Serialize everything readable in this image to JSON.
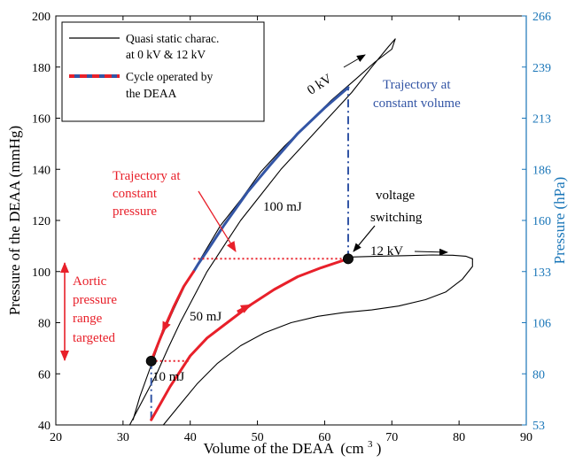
{
  "chart_data": {
    "type": "line",
    "xlabel": "Volume of the DEAA",
    "xlabel_unit": "(cm",
    "xlabel_unit_sup": "3",
    "xlabel_unit_close": ")",
    "ylabel": "Pressure of the DEAA (mmHg)",
    "ylabel_right": "Pressure (hPa)",
    "xlim": [
      20,
      90
    ],
    "ylim": [
      40,
      200
    ],
    "ylim_right": [
      53,
      266
    ],
    "x_ticks": [
      "20",
      "30",
      "40",
      "50",
      "60",
      "70",
      "80",
      "90"
    ],
    "y_ticks": [
      "40",
      "60",
      "80",
      "100",
      "120",
      "140",
      "160",
      "180",
      "200"
    ],
    "y_ticks_right": [
      "53",
      "80",
      "106",
      "133",
      "160",
      "186",
      "213",
      "239",
      "266"
    ],
    "grid": false,
    "legend_position": "top-left",
    "legend": [
      {
        "text": "Quasi static charac.",
        "text2": "at 0 kV & 12 kV",
        "style": "black solid"
      },
      {
        "text": "Cycle operated by",
        "text2": "the DEAA",
        "style": "red/blue dashed"
      }
    ],
    "colors": {
      "quasi_static": "#000000",
      "cycle_red": "#e8202a",
      "cycle_blue": "#3355a5",
      "right_axis": "#1a76b8"
    },
    "series": [
      {
        "kind": "quasi-static 0 kV (loading)",
        "color": "#000000",
        "points": [
          [
            31.0,
            40
          ],
          [
            33.0,
            50
          ],
          [
            35.0,
            60
          ],
          [
            36.7,
            70
          ],
          [
            38.5,
            80
          ],
          [
            40.5,
            90
          ],
          [
            42.5,
            100
          ],
          [
            45.0,
            110
          ],
          [
            47.5,
            120
          ],
          [
            50.5,
            130
          ],
          [
            53.5,
            140
          ],
          [
            57.0,
            150
          ],
          [
            60.5,
            160
          ],
          [
            64.0,
            170
          ],
          [
            67.0,
            180
          ],
          [
            69.5,
            188
          ],
          [
            70.5,
            191
          ]
        ]
      },
      {
        "kind": "quasi-static 0 kV (unloading)",
        "color": "#000000",
        "points": [
          [
            70.5,
            191
          ],
          [
            70.0,
            187
          ],
          [
            67.5,
            182
          ],
          [
            64.5,
            175
          ],
          [
            61.0,
            167
          ],
          [
            57.5,
            158
          ],
          [
            54.0,
            149
          ],
          [
            50.5,
            139
          ],
          [
            47.5,
            128
          ],
          [
            44.5,
            118
          ],
          [
            42.0,
            107
          ],
          [
            39.5,
            96
          ],
          [
            37.5,
            85
          ],
          [
            35.5,
            73
          ],
          [
            34.0,
            62
          ],
          [
            32.5,
            51
          ],
          [
            31.5,
            42
          ]
        ]
      },
      {
        "kind": "quasi-static 12 kV (loading)",
        "color": "#000000",
        "points": [
          [
            36.0,
            40
          ],
          [
            38.5,
            48
          ],
          [
            41.0,
            56
          ],
          [
            44.0,
            64
          ],
          [
            47.5,
            71
          ],
          [
            51.0,
            76
          ],
          [
            55.0,
            80
          ],
          [
            59.0,
            82.5
          ],
          [
            63.0,
            84
          ],
          [
            67.0,
            85
          ],
          [
            71.0,
            86.5
          ],
          [
            75.0,
            89
          ],
          [
            78.0,
            92
          ],
          [
            80.5,
            97
          ],
          [
            82.0,
            102
          ],
          [
            82.0,
            105
          ]
        ]
      },
      {
        "kind": "quasi-static 12 kV (unloading)",
        "color": "#000000",
        "points": [
          [
            82.0,
            105
          ],
          [
            81.0,
            106
          ],
          [
            79.0,
            106.4
          ],
          [
            76.0,
            106.5
          ],
          [
            72.0,
            106.2
          ],
          [
            68.0,
            106.0
          ],
          [
            64.0,
            105.7
          ]
        ]
      },
      {
        "kind": "cycle: constant-volume trajectory (top)",
        "color": "#3355a5",
        "dash": "dashdot",
        "points": [
          [
            63.5,
            105
          ],
          [
            63.5,
            172
          ]
        ]
      },
      {
        "kind": "cycle: 0 kV trajectory",
        "color": "#3355a5",
        "points": [
          [
            63.5,
            172
          ],
          [
            60.0,
            164
          ],
          [
            56.0,
            154
          ],
          [
            52.0,
            142
          ],
          [
            48.5,
            131
          ],
          [
            45.0,
            118
          ],
          [
            42.5,
            108
          ],
          [
            41.2,
            103
          ],
          [
            40.5,
            100
          ]
        ]
      },
      {
        "kind": "cycle: 0 kV trajectory (red section)",
        "color": "#e8202a",
        "points": [
          [
            40.5,
            100
          ],
          [
            39.0,
            94
          ],
          [
            37.5,
            86
          ],
          [
            36.0,
            77
          ],
          [
            34.5,
            67
          ],
          [
            34.2,
            65
          ]
        ]
      },
      {
        "kind": "cycle: constant-volume trajectory (bottom)",
        "color": "#3355a5",
        "dash": "dashdot",
        "points": [
          [
            34.2,
            65
          ],
          [
            34.2,
            42
          ]
        ]
      },
      {
        "kind": "cycle: 12 kV trajectory",
        "color": "#e8202a",
        "points": [
          [
            34.2,
            42
          ],
          [
            35.5,
            48
          ],
          [
            37.0,
            55
          ],
          [
            38.5,
            61
          ],
          [
            40.0,
            67
          ],
          [
            42.5,
            74
          ],
          [
            45.5,
            80
          ],
          [
            49.0,
            87
          ],
          [
            52.5,
            93
          ],
          [
            56.0,
            98
          ],
          [
            59.5,
            101.5
          ],
          [
            63.5,
            105
          ]
        ]
      },
      {
        "kind": "constant-pressure trajectory 105 mmHg",
        "color": "#e8202a",
        "dash": "dotted",
        "points": [
          [
            40.5,
            105
          ],
          [
            63.5,
            105
          ]
        ]
      },
      {
        "kind": "constant-pressure trajectory 65 mmHg",
        "color": "#e8202a",
        "dash": "dotted",
        "points": [
          [
            34.2,
            65
          ],
          [
            40.0,
            65
          ]
        ]
      }
    ],
    "markers": [
      [
        63.5,
        105
      ],
      [
        34.2,
        65
      ]
    ],
    "annotations": {
      "label_0kv": "0 kV",
      "label_12kv": "12 kV",
      "constant_volume_1": "Trajectory at",
      "constant_volume_2": "constant volume",
      "constant_pressure_1": "Trajectory at",
      "constant_pressure_2": "constant",
      "constant_pressure_3": "pressure",
      "energy_100": "100 mJ",
      "energy_50": "50 mJ",
      "energy_10": "10 mJ",
      "voltage_1": "voltage",
      "voltage_2": "switching",
      "aortic_1": "Aortic",
      "aortic_2": "pressure",
      "aortic_3": "range",
      "aortic_4": "targeted"
    }
  }
}
